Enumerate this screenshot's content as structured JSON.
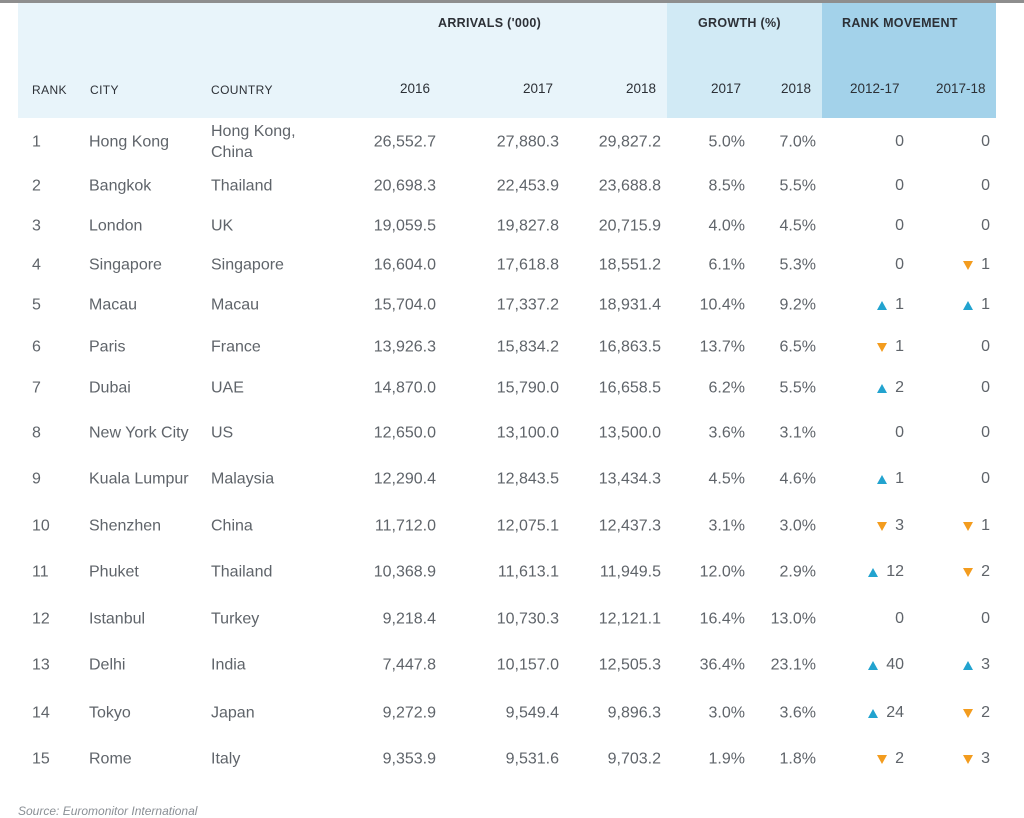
{
  "headers": {
    "group_arrivals": "ARRIVALS ('000)",
    "group_growth": "GROWTH (%)",
    "group_rank": "RANK MOVEMENT",
    "rank": "RANK",
    "city": "CITY",
    "country": "COUNTRY",
    "y2016": "2016",
    "y2017": "2017",
    "y2018": "2018",
    "g2017": "2017",
    "g2018": "2018",
    "m2012_17": "2012-17",
    "m2017_18": "2017-18"
  },
  "rows": [
    {
      "rank": "1",
      "city": "Hong Kong",
      "country": "Hong Kong, China",
      "a2016": "26,552.7",
      "a2017": "27,880.3",
      "a2018": "29,827.2",
      "g2017": "5.0%",
      "g2018": "7.0%",
      "m1": {
        "dir": "none",
        "val": "0"
      },
      "m2": {
        "dir": "none",
        "val": "0"
      }
    },
    {
      "rank": "2",
      "city": "Bangkok",
      "country": "Thailand",
      "a2016": "20,698.3",
      "a2017": "22,453.9",
      "a2018": "23,688.8",
      "g2017": "8.5%",
      "g2018": "5.5%",
      "m1": {
        "dir": "none",
        "val": "0"
      },
      "m2": {
        "dir": "none",
        "val": "0"
      }
    },
    {
      "rank": "3",
      "city": "London",
      "country": "UK",
      "a2016": "19,059.5",
      "a2017": "19,827.8",
      "a2018": "20,715.9",
      "g2017": "4.0%",
      "g2018": "4.5%",
      "m1": {
        "dir": "none",
        "val": "0"
      },
      "m2": {
        "dir": "none",
        "val": "0"
      }
    },
    {
      "rank": "4",
      "city": "Singapore",
      "country": "Singapore",
      "a2016": "16,604.0",
      "a2017": "17,618.8",
      "a2018": "18,551.2",
      "g2017": "6.1%",
      "g2018": "5.3%",
      "m1": {
        "dir": "none",
        "val": "0"
      },
      "m2": {
        "dir": "down",
        "val": "1"
      }
    },
    {
      "rank": "5",
      "city": "Macau",
      "country": "Macau",
      "a2016": "15,704.0",
      "a2017": "17,337.2",
      "a2018": "18,931.4",
      "g2017": "10.4%",
      "g2018": "9.2%",
      "m1": {
        "dir": "up",
        "val": "1"
      },
      "m2": {
        "dir": "up",
        "val": "1"
      }
    },
    {
      "rank": "6",
      "city": "Paris",
      "country": "France",
      "a2016": "13,926.3",
      "a2017": "15,834.2",
      "a2018": "16,863.5",
      "g2017": "13.7%",
      "g2018": "6.5%",
      "m1": {
        "dir": "down",
        "val": "1"
      },
      "m2": {
        "dir": "none",
        "val": "0"
      }
    },
    {
      "rank": "7",
      "city": "Dubai",
      "country": "UAE",
      "a2016": "14,870.0",
      "a2017": "15,790.0",
      "a2018": "16,658.5",
      "g2017": "6.2%",
      "g2018": "5.5%",
      "m1": {
        "dir": "up",
        "val": "2"
      },
      "m2": {
        "dir": "none",
        "val": "0"
      }
    },
    {
      "rank": "8",
      "city": "New York City",
      "country": "US",
      "a2016": "12,650.0",
      "a2017": "13,100.0",
      "a2018": "13,500.0",
      "g2017": "3.6%",
      "g2018": "3.1%",
      "m1": {
        "dir": "none",
        "val": "0"
      },
      "m2": {
        "dir": "none",
        "val": "0"
      }
    },
    {
      "rank": "9",
      "city": "Kuala Lumpur",
      "country": "Malaysia",
      "a2016": "12,290.4",
      "a2017": "12,843.5",
      "a2018": "13,434.3",
      "g2017": "4.5%",
      "g2018": "4.6%",
      "m1": {
        "dir": "up",
        "val": "1"
      },
      "m2": {
        "dir": "none",
        "val": "0"
      }
    },
    {
      "rank": "10",
      "city": "Shenzhen",
      "country": "China",
      "a2016": "11,712.0",
      "a2017": "12,075.1",
      "a2018": "12,437.3",
      "g2017": "3.1%",
      "g2018": "3.0%",
      "m1": {
        "dir": "down",
        "val": "3"
      },
      "m2": {
        "dir": "down",
        "val": "1"
      }
    },
    {
      "rank": "11",
      "city": "Phuket",
      "country": "Thailand",
      "a2016": "10,368.9",
      "a2017": "11,613.1",
      "a2018": "11,949.5",
      "g2017": "12.0%",
      "g2018": "2.9%",
      "m1": {
        "dir": "up",
        "val": "12"
      },
      "m2": {
        "dir": "down",
        "val": "2"
      }
    },
    {
      "rank": "12",
      "city": "Istanbul",
      "country": "Turkey",
      "a2016": "9,218.4",
      "a2017": "10,730.3",
      "a2018": "12,121.1",
      "g2017": "16.4%",
      "g2018": "13.0%",
      "m1": {
        "dir": "none",
        "val": "0"
      },
      "m2": {
        "dir": "none",
        "val": "0"
      }
    },
    {
      "rank": "13",
      "city": "Delhi",
      "country": "India",
      "a2016": "7,447.8",
      "a2017": "10,157.0",
      "a2018": "12,505.3",
      "g2017": "36.4%",
      "g2018": "23.1%",
      "m1": {
        "dir": "up",
        "val": "40"
      },
      "m2": {
        "dir": "up",
        "val": "3"
      }
    },
    {
      "rank": "14",
      "city": "Tokyo",
      "country": "Japan",
      "a2016": "9,272.9",
      "a2017": "9,549.4",
      "a2018": "9,896.3",
      "g2017": "3.0%",
      "g2018": "3.6%",
      "m1": {
        "dir": "up",
        "val": "24"
      },
      "m2": {
        "dir": "down",
        "val": "2"
      }
    },
    {
      "rank": "15",
      "city": "Rome",
      "country": "Italy",
      "a2016": "9,353.9",
      "a2017": "9,531.6",
      "a2018": "9,703.2",
      "g2017": "1.9%",
      "g2018": "1.8%",
      "m1": {
        "dir": "down",
        "val": "2"
      },
      "m2": {
        "dir": "down",
        "val": "3"
      }
    }
  ],
  "source": "Source: Euromonitor International",
  "colors": {
    "up_arrow": "#22a3cf",
    "down_arrow": "#f39c1e"
  }
}
